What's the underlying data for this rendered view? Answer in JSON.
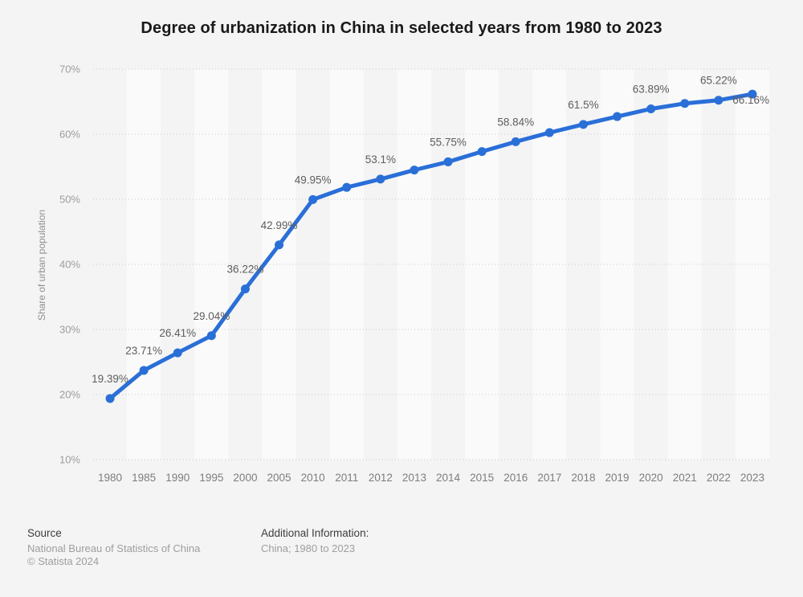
{
  "page": {
    "title": "Degree of urbanization in China in selected years from 1980 to 2023",
    "footer": {
      "source_label": "Source",
      "source_name": "National Bureau of Statistics of China",
      "copyright": "© Statista 2024",
      "additional_info_label": "Additional Information:",
      "additional_info_value": "China; 1980 to 2023"
    }
  },
  "chart_data": {
    "type": "line",
    "title": "Degree of urbanization in China in selected years from 1980 to 2023",
    "xlabel": "",
    "ylabel": "Share of urban population",
    "x": [
      "1980",
      "1985",
      "1990",
      "1995",
      "2000",
      "2005",
      "2010",
      "2011",
      "2012",
      "2013",
      "2014",
      "2015",
      "2016",
      "2017",
      "2018",
      "2019",
      "2020",
      "2021",
      "2022",
      "2023"
    ],
    "series": [
      {
        "name": "Share of urban population",
        "values": [
          19.39,
          23.71,
          26.41,
          29.04,
          36.22,
          42.99,
          49.95,
          51.83,
          53.1,
          54.49,
          55.75,
          57.33,
          58.84,
          60.24,
          61.5,
          62.71,
          63.89,
          64.72,
          65.22,
          66.16
        ]
      }
    ],
    "point_labels": [
      "19.39%",
      "23.71%",
      "26.41%",
      "29.04%",
      "36.22%",
      "42.99%",
      "49.95%",
      "",
      "53.1%",
      "",
      "55.75%",
      "",
      "58.84%",
      "",
      "61.5%",
      "",
      "63.89%",
      "",
      "65.22%",
      "66.16%"
    ],
    "ylim": [
      10,
      70
    ],
    "yticks": [
      {
        "value": 10,
        "label": "10%"
      },
      {
        "value": 20,
        "label": "20%"
      },
      {
        "value": 30,
        "label": "30%"
      },
      {
        "value": 40,
        "label": "40%"
      },
      {
        "value": 50,
        "label": "50%"
      },
      {
        "value": 60,
        "label": "60%"
      },
      {
        "value": 70,
        "label": "70%"
      }
    ],
    "grid": "horizontal-dotted",
    "legend": "none",
    "line_color": "#2a6fd8",
    "plot_band_color": "#fafafa",
    "background_color": "#f4f4f4"
  }
}
